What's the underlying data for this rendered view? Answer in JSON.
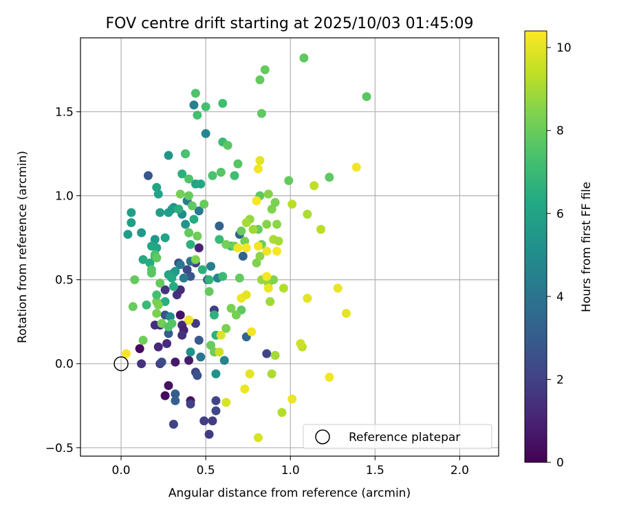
{
  "chart_data": {
    "type": "scatter",
    "title": "FOV centre drift starting at 2025/10/03 01:45:09",
    "xlabel": "Angular distance from reference (arcmin)",
    "ylabel": "Rotation from reference (arcmin)",
    "xlim": [
      -0.24,
      2.23
    ],
    "ylim": [
      -0.55,
      1.94
    ],
    "xticks": [
      0.0,
      0.5,
      1.0,
      1.5,
      2.0
    ],
    "xtick_labels": [
      "0.0",
      "0.5",
      "1.0",
      "1.5",
      "2.0"
    ],
    "yticks": [
      -0.5,
      0.0,
      0.5,
      1.0,
      1.5
    ],
    "ytick_labels": [
      "−0.5",
      "0.0",
      "0.5",
      "1.0",
      "1.5"
    ],
    "grid": true,
    "legend": {
      "location": "lower-right",
      "entries": [
        "Reference platepar"
      ]
    },
    "reference_point": {
      "x": 0.0,
      "y": 0.0,
      "label": "Reference platepar"
    },
    "colorbar": {
      "label": "Hours from first FF file",
      "range": [
        0,
        10.4
      ],
      "ticks": [
        0,
        2,
        4,
        6,
        8,
        10
      ],
      "tick_labels": [
        "0",
        "2",
        "4",
        "6",
        "8",
        "10"
      ],
      "colormap": "viridis"
    },
    "points": [
      {
        "x": 0.11,
        "y": 0.09,
        "c": 0.2
      },
      {
        "x": 0.12,
        "y": 0.0,
        "c": 1.5
      },
      {
        "x": 0.23,
        "y": 0.23,
        "c": 1.0
      },
      {
        "x": 0.26,
        "y": -0.19,
        "c": 0.3
      },
      {
        "x": 0.28,
        "y": -0.13,
        "c": 0.5
      },
      {
        "x": 0.35,
        "y": 0.29,
        "c": 0.5
      },
      {
        "x": 0.36,
        "y": 0.23,
        "c": 1.2
      },
      {
        "x": 0.41,
        "y": -0.22,
        "c": 0.6
      },
      {
        "x": 0.46,
        "y": 0.69,
        "c": 1.0
      },
      {
        "x": 0.4,
        "y": 0.02,
        "c": 0.8
      },
      {
        "x": 0.32,
        "y": 0.01,
        "c": 0.7
      },
      {
        "x": 0.37,
        "y": 0.2,
        "c": 1.0
      },
      {
        "x": 0.27,
        "y": 0.12,
        "c": 1.3
      },
      {
        "x": 0.23,
        "y": 0.0,
        "c": 1.8
      },
      {
        "x": 0.2,
        "y": 0.23,
        "c": 1.4
      },
      {
        "x": 0.22,
        "y": 0.1,
        "c": 1.2
      },
      {
        "x": 0.31,
        "y": -0.36,
        "c": 2.0
      },
      {
        "x": 0.41,
        "y": -0.24,
        "c": 2.0
      },
      {
        "x": 0.36,
        "y": 0.17,
        "c": 1.5
      },
      {
        "x": 0.4,
        "y": 0.26,
        "c": 1.6
      },
      {
        "x": 0.33,
        "y": 0.41,
        "c": 1.5
      },
      {
        "x": 0.35,
        "y": 0.44,
        "c": 1.3
      },
      {
        "x": 0.26,
        "y": 0.44,
        "c": 1.6
      },
      {
        "x": 0.49,
        "y": -0.34,
        "c": 1.9
      },
      {
        "x": 0.52,
        "y": -0.42,
        "c": 1.8
      },
      {
        "x": 0.54,
        "y": -0.34,
        "c": 1.9
      },
      {
        "x": 0.56,
        "y": -0.22,
        "c": 2.1
      },
      {
        "x": 0.56,
        "y": -0.28,
        "c": 2.2
      },
      {
        "x": 0.44,
        "y": 0.24,
        "c": 1.8
      },
      {
        "x": 0.55,
        "y": 0.32,
        "c": 1.9
      },
      {
        "x": 0.44,
        "y": -0.05,
        "c": 2.1
      },
      {
        "x": 0.45,
        "y": -0.07,
        "c": 2.6
      },
      {
        "x": 0.44,
        "y": 0.6,
        "c": 1.9
      },
      {
        "x": 0.34,
        "y": 0.6,
        "c": 2.1
      },
      {
        "x": 0.41,
        "y": 0.52,
        "c": 2.8
      },
      {
        "x": 0.39,
        "y": 0.56,
        "c": 2.3
      },
      {
        "x": 0.32,
        "y": -0.18,
        "c": 3.0
      },
      {
        "x": 0.32,
        "y": -0.22,
        "c": 3.2
      },
      {
        "x": 0.26,
        "y": 0.29,
        "c": 2.7
      },
      {
        "x": 0.28,
        "y": 0.18,
        "c": 3.1
      },
      {
        "x": 0.24,
        "y": 0.01,
        "c": 2.4
      },
      {
        "x": 0.16,
        "y": 1.12,
        "c": 2.8
      },
      {
        "x": 0.46,
        "y": 0.14,
        "c": 2.9
      },
      {
        "x": 0.51,
        "y": 0.5,
        "c": 3.1
      },
      {
        "x": 0.58,
        "y": 0.82,
        "c": 3.3
      },
      {
        "x": 0.7,
        "y": 0.77,
        "c": 3.3
      },
      {
        "x": 0.72,
        "y": 0.64,
        "c": 3.3
      },
      {
        "x": 0.74,
        "y": 0.16,
        "c": 3.4
      },
      {
        "x": 0.86,
        "y": 0.06,
        "c": 2.1
      },
      {
        "x": 0.47,
        "y": 0.04,
        "c": 3.9
      },
      {
        "x": 0.39,
        "y": 0.97,
        "c": 4.4
      },
      {
        "x": 0.37,
        "y": 0.51,
        "c": 4.3
      },
      {
        "x": 0.35,
        "y": 0.59,
        "c": 4.2
      },
      {
        "x": 0.41,
        "y": 0.61,
        "c": 4.0
      },
      {
        "x": 0.43,
        "y": 1.54,
        "c": 4.5
      },
      {
        "x": 0.46,
        "y": 0.91,
        "c": 4.2
      },
      {
        "x": 0.5,
        "y": 1.37,
        "c": 4.8
      },
      {
        "x": 0.53,
        "y": 0.58,
        "c": 4.4
      },
      {
        "x": 0.57,
        "y": 0.51,
        "c": 4.7
      },
      {
        "x": 0.61,
        "y": 0.02,
        "c": 4.6
      },
      {
        "x": 0.29,
        "y": 0.28,
        "c": 4.9
      },
      {
        "x": 0.31,
        "y": 0.54,
        "c": 4.8
      },
      {
        "x": 0.31,
        "y": 0.93,
        "c": 5.0
      },
      {
        "x": 0.36,
        "y": 0.89,
        "c": 4.9
      },
      {
        "x": 0.41,
        "y": 0.07,
        "c": 5.2
      },
      {
        "x": 0.56,
        "y": -0.06,
        "c": 5.3
      },
      {
        "x": 0.38,
        "y": 0.83,
        "c": 5.4
      },
      {
        "x": 0.28,
        "y": 1.24,
        "c": 5.4
      },
      {
        "x": 0.32,
        "y": 0.55,
        "c": 5.6
      },
      {
        "x": 0.34,
        "y": 0.92,
        "c": 5.6
      },
      {
        "x": 0.04,
        "y": 0.77,
        "c": 5.7
      },
      {
        "x": 0.06,
        "y": 0.9,
        "c": 5.9
      },
      {
        "x": 0.06,
        "y": 0.84,
        "c": 5.8
      },
      {
        "x": 0.12,
        "y": 0.78,
        "c": 5.6
      },
      {
        "x": 0.2,
        "y": 0.74,
        "c": 5.5
      },
      {
        "x": 0.22,
        "y": 1.01,
        "c": 6.0
      },
      {
        "x": 0.23,
        "y": 0.9,
        "c": 5.8
      },
      {
        "x": 0.26,
        "y": 0.75,
        "c": 6.0
      },
      {
        "x": 0.28,
        "y": 0.9,
        "c": 5.9
      },
      {
        "x": 0.3,
        "y": 0.92,
        "c": 5.7
      },
      {
        "x": 0.44,
        "y": 1.07,
        "c": 6.0
      },
      {
        "x": 0.47,
        "y": 1.07,
        "c": 6.2
      },
      {
        "x": 0.21,
        "y": 1.05,
        "c": 6.1
      },
      {
        "x": 0.18,
        "y": 0.7,
        "c": 6.2
      },
      {
        "x": 0.21,
        "y": 0.69,
        "c": 6.1
      },
      {
        "x": 0.13,
        "y": 0.62,
        "c": 6.3
      },
      {
        "x": 0.17,
        "y": 0.6,
        "c": 6.4
      },
      {
        "x": 0.2,
        "y": 0.64,
        "c": 6.3
      },
      {
        "x": 0.28,
        "y": 0.53,
        "c": 6.1
      },
      {
        "x": 0.3,
        "y": 0.51,
        "c": 6.3
      },
      {
        "x": 0.31,
        "y": 0.46,
        "c": 6.4
      },
      {
        "x": 0.26,
        "y": 0.37,
        "c": 6.5
      },
      {
        "x": 0.34,
        "y": 0.92,
        "c": 6.5
      },
      {
        "x": 0.36,
        "y": 1.13,
        "c": 6.6
      },
      {
        "x": 0.38,
        "y": 1.25,
        "c": 6.7
      },
      {
        "x": 0.4,
        "y": 0.78,
        "c": 6.5
      },
      {
        "x": 0.41,
        "y": 0.71,
        "c": 6.6
      },
      {
        "x": 0.43,
        "y": 0.86,
        "c": 6.4
      },
      {
        "x": 0.48,
        "y": 0.56,
        "c": 6.6
      },
      {
        "x": 0.52,
        "y": 0.5,
        "c": 6.8
      },
      {
        "x": 0.55,
        "y": 0.29,
        "c": 6.7
      },
      {
        "x": 0.56,
        "y": 0.17,
        "c": 6.6
      },
      {
        "x": 0.6,
        "y": 0.52,
        "c": 7.0
      },
      {
        "x": 0.65,
        "y": 0.7,
        "c": 6.9
      },
      {
        "x": 0.58,
        "y": 0.74,
        "c": 7.0
      },
      {
        "x": 0.67,
        "y": 1.12,
        "c": 7.2
      },
      {
        "x": 0.6,
        "y": 1.32,
        "c": 7.1
      },
      {
        "x": 0.6,
        "y": 1.55,
        "c": 7.2
      },
      {
        "x": 0.5,
        "y": 1.53,
        "c": 7.3
      },
      {
        "x": 0.45,
        "y": 1.48,
        "c": 7.3
      },
      {
        "x": 0.44,
        "y": 1.61,
        "c": 7.5
      },
      {
        "x": 0.38,
        "y": 1.25,
        "c": 7.4
      },
      {
        "x": 0.4,
        "y": 1.1,
        "c": 7.5
      },
      {
        "x": 0.54,
        "y": 1.12,
        "c": 7.4
      },
      {
        "x": 0.59,
        "y": 1.14,
        "c": 7.6
      },
      {
        "x": 0.69,
        "y": 1.19,
        "c": 7.6
      },
      {
        "x": 0.63,
        "y": 1.3,
        "c": 7.7
      },
      {
        "x": 0.83,
        "y": 1.49,
        "c": 7.8
      },
      {
        "x": 0.82,
        "y": 1.69,
        "c": 7.9
      },
      {
        "x": 0.85,
        "y": 1.75,
        "c": 7.9
      },
      {
        "x": 1.08,
        "y": 1.82,
        "c": 7.8
      },
      {
        "x": 1.45,
        "y": 1.59,
        "c": 7.7
      },
      {
        "x": 1.23,
        "y": 1.11,
        "c": 7.8
      },
      {
        "x": 0.99,
        "y": 1.09,
        "c": 7.9
      },
      {
        "x": 0.82,
        "y": 1.0,
        "c": 7.8
      },
      {
        "x": 0.81,
        "y": 0.8,
        "c": 8.0
      },
      {
        "x": 0.83,
        "y": 0.71,
        "c": 8.1
      },
      {
        "x": 0.71,
        "y": 0.79,
        "c": 8.0
      },
      {
        "x": 0.73,
        "y": 0.73,
        "c": 8.2
      },
      {
        "x": 0.67,
        "y": 0.7,
        "c": 8.1
      },
      {
        "x": 0.62,
        "y": 0.71,
        "c": 8.2
      },
      {
        "x": 0.65,
        "y": 0.33,
        "c": 8.3
      },
      {
        "x": 0.7,
        "y": 0.51,
        "c": 7.9
      },
      {
        "x": 0.71,
        "y": 0.32,
        "c": 7.8
      },
      {
        "x": 0.68,
        "y": 0.29,
        "c": 8.2
      },
      {
        "x": 0.62,
        "y": 0.21,
        "c": 8.3
      },
      {
        "x": 0.49,
        "y": 0.95,
        "c": 8.0
      },
      {
        "x": 0.42,
        "y": 0.94,
        "c": 7.8
      },
      {
        "x": 0.45,
        "y": 0.76,
        "c": 8.1
      },
      {
        "x": 0.44,
        "y": 0.62,
        "c": 8.4
      },
      {
        "x": 0.4,
        "y": 0.78,
        "c": 7.9
      },
      {
        "x": 0.21,
        "y": 0.37,
        "c": 8.2
      },
      {
        "x": 0.21,
        "y": 0.3,
        "c": 8.3
      },
      {
        "x": 0.13,
        "y": 0.14,
        "c": 8.1
      },
      {
        "x": 0.08,
        "y": 0.5,
        "c": 7.9
      },
      {
        "x": 0.07,
        "y": 0.34,
        "c": 8.0
      },
      {
        "x": 0.15,
        "y": 0.35,
        "c": 7.0
      },
      {
        "x": 0.21,
        "y": 0.41,
        "c": 7.3
      },
      {
        "x": 0.18,
        "y": 0.56,
        "c": 7.6
      },
      {
        "x": 0.18,
        "y": 0.54,
        "c": 7.7
      },
      {
        "x": 0.2,
        "y": 0.65,
        "c": 7.4
      },
      {
        "x": 0.21,
        "y": 0.63,
        "c": 7.8
      },
      {
        "x": 0.23,
        "y": 0.48,
        "c": 7.9
      },
      {
        "x": 0.24,
        "y": 0.24,
        "c": 8.1
      },
      {
        "x": 0.22,
        "y": 0.35,
        "c": 8.3
      },
      {
        "x": 0.28,
        "y": 0.22,
        "c": 7.5
      },
      {
        "x": 0.3,
        "y": 0.24,
        "c": 7.6
      },
      {
        "x": 0.35,
        "y": 1.01,
        "c": 8.2
      },
      {
        "x": 0.4,
        "y": 1.0,
        "c": 8.0
      },
      {
        "x": 0.52,
        "y": 0.43,
        "c": 7.9
      },
      {
        "x": 0.53,
        "y": 0.11,
        "c": 8.0
      },
      {
        "x": 0.55,
        "y": 0.07,
        "c": 8.1
      },
      {
        "x": 0.87,
        "y": 1.01,
        "c": 8.5
      },
      {
        "x": 0.89,
        "y": 0.92,
        "c": 8.4
      },
      {
        "x": 0.91,
        "y": 0.96,
        "c": 8.3
      },
      {
        "x": 0.86,
        "y": 0.83,
        "c": 8.5
      },
      {
        "x": 0.92,
        "y": 0.83,
        "c": 8.6
      },
      {
        "x": 0.8,
        "y": 0.6,
        "c": 8.4
      },
      {
        "x": 0.82,
        "y": 0.64,
        "c": 8.6
      },
      {
        "x": 0.83,
        "y": 0.5,
        "c": 8.8
      },
      {
        "x": 0.87,
        "y": 0.48,
        "c": 8.7
      },
      {
        "x": 0.9,
        "y": 0.5,
        "c": 8.4
      },
      {
        "x": 0.88,
        "y": 0.37,
        "c": 8.9
      },
      {
        "x": 0.76,
        "y": 0.86,
        "c": 8.7
      },
      {
        "x": 0.78,
        "y": 0.8,
        "c": 8.9
      },
      {
        "x": 0.74,
        "y": 0.84,
        "c": 9.0
      },
      {
        "x": 0.9,
        "y": 0.74,
        "c": 9.1
      },
      {
        "x": 0.93,
        "y": 0.73,
        "c": 9.0
      },
      {
        "x": 0.96,
        "y": 0.45,
        "c": 9.2
      },
      {
        "x": 0.91,
        "y": 0.05,
        "c": 9.0
      },
      {
        "x": 0.89,
        "y": -0.06,
        "c": 9.1
      },
      {
        "x": 0.95,
        "y": -0.29,
        "c": 9.2
      },
      {
        "x": 1.01,
        "y": 0.95,
        "c": 9.3
      },
      {
        "x": 1.1,
        "y": 0.89,
        "c": 9.1
      },
      {
        "x": 1.14,
        "y": 1.06,
        "c": 9.4
      },
      {
        "x": 1.18,
        "y": 0.8,
        "c": 9.3
      },
      {
        "x": 1.07,
        "y": 0.1,
        "c": 9.4
      },
      {
        "x": 1.06,
        "y": 0.12,
        "c": 9.6
      },
      {
        "x": 0.58,
        "y": 0.07,
        "c": 9.6
      },
      {
        "x": 0.59,
        "y": 0.17,
        "c": 9.9
      },
      {
        "x": 0.62,
        "y": -0.23,
        "c": 9.8
      },
      {
        "x": 0.73,
        "y": -0.15,
        "c": 10.1
      },
      {
        "x": 0.76,
        "y": -0.06,
        "c": 10.0
      },
      {
        "x": 0.81,
        "y": -0.44,
        "c": 9.8
      },
      {
        "x": 1.01,
        "y": -0.21,
        "c": 10.1
      },
      {
        "x": 1.1,
        "y": 0.39,
        "c": 10.0
      },
      {
        "x": 1.23,
        "y": -0.08,
        "c": 10.2
      },
      {
        "x": 1.28,
        "y": 0.45,
        "c": 10.1
      },
      {
        "x": 1.33,
        "y": 0.3,
        "c": 10.0
      },
      {
        "x": 1.39,
        "y": 1.17,
        "c": 10.2
      },
      {
        "x": 0.8,
        "y": 0.97,
        "c": 10.3
      },
      {
        "x": 0.81,
        "y": 1.16,
        "c": 10.2
      },
      {
        "x": 0.82,
        "y": 1.21,
        "c": 10.0
      },
      {
        "x": 0.86,
        "y": 0.67,
        "c": 10.1
      },
      {
        "x": 0.92,
        "y": 0.67,
        "c": 10.3
      },
      {
        "x": 0.74,
        "y": 0.69,
        "c": 10.3
      },
      {
        "x": 0.69,
        "y": 0.69,
        "c": 10.2
      },
      {
        "x": 0.71,
        "y": 0.39,
        "c": 10.1
      },
      {
        "x": 0.74,
        "y": 0.41,
        "c": 10.0
      },
      {
        "x": 0.77,
        "y": 0.19,
        "c": 10.2
      },
      {
        "x": 0.81,
        "y": 0.7,
        "c": 10.2
      },
      {
        "x": 0.86,
        "y": 0.52,
        "c": 10.3
      },
      {
        "x": 0.87,
        "y": 0.45,
        "c": 10.1
      },
      {
        "x": 0.4,
        "y": 0.26,
        "c": 10.2
      },
      {
        "x": 0.03,
        "y": 0.06,
        "c": 10.3
      }
    ]
  }
}
